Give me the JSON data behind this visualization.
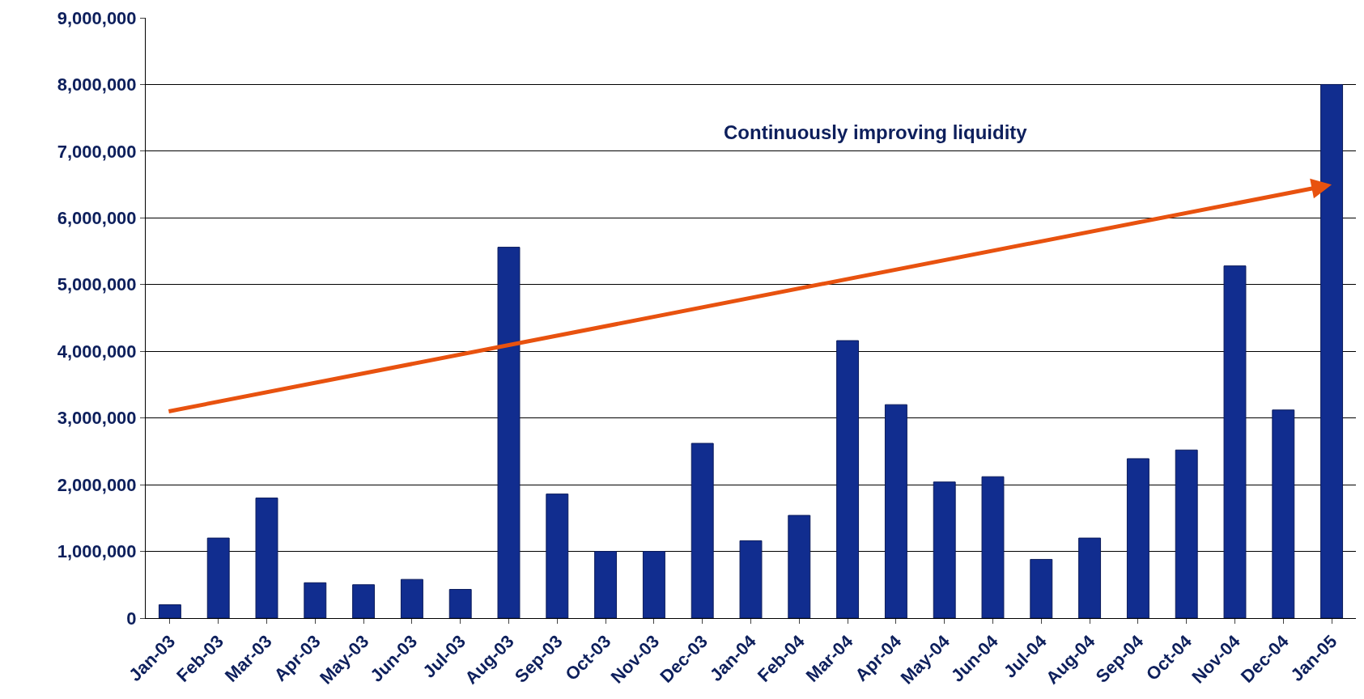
{
  "chart_data": {
    "type": "bar",
    "categories": [
      "Jan-03",
      "Feb-03",
      "Mar-03",
      "Apr-03",
      "May-03",
      "Jun-03",
      "Jul-03",
      "Aug-03",
      "Sep-03",
      "Oct-03",
      "Nov-03",
      "Dec-03",
      "Jan-04",
      "Feb-04",
      "Mar-04",
      "Apr-04",
      "May-04",
      "Jun-04",
      "Jul-04",
      "Aug-04",
      "Sep-04",
      "Oct-04",
      "Nov-04",
      "Dec-04",
      "Jan-05"
    ],
    "values": [
      200000,
      1200000,
      1800000,
      530000,
      500000,
      580000,
      430000,
      5560000,
      1860000,
      1000000,
      1000000,
      2620000,
      1160000,
      1540000,
      4160000,
      3200000,
      2040000,
      2120000,
      880000,
      1200000,
      2390000,
      2520000,
      5280000,
      3120000,
      8000000
    ],
    "color": "#112d8f",
    "ylim": [
      0,
      9000000
    ],
    "yticks": [
      {
        "value": 0,
        "label": "0"
      },
      {
        "value": 1000000,
        "label": "1,000,000"
      },
      {
        "value": 2000000,
        "label": "2,000,000"
      },
      {
        "value": 3000000,
        "label": "3,000,000"
      },
      {
        "value": 4000000,
        "label": "4,000,000"
      },
      {
        "value": 5000000,
        "label": "5,000,000"
      },
      {
        "value": 6000000,
        "label": "6,000,000"
      },
      {
        "value": 7000000,
        "label": "7,000,000"
      },
      {
        "value": 8000000,
        "label": "8,000,000"
      },
      {
        "value": 9000000,
        "label": "9,000,000"
      }
    ],
    "grid": "y",
    "annotations": [
      "Continuously improving liquidity"
    ]
  }
}
